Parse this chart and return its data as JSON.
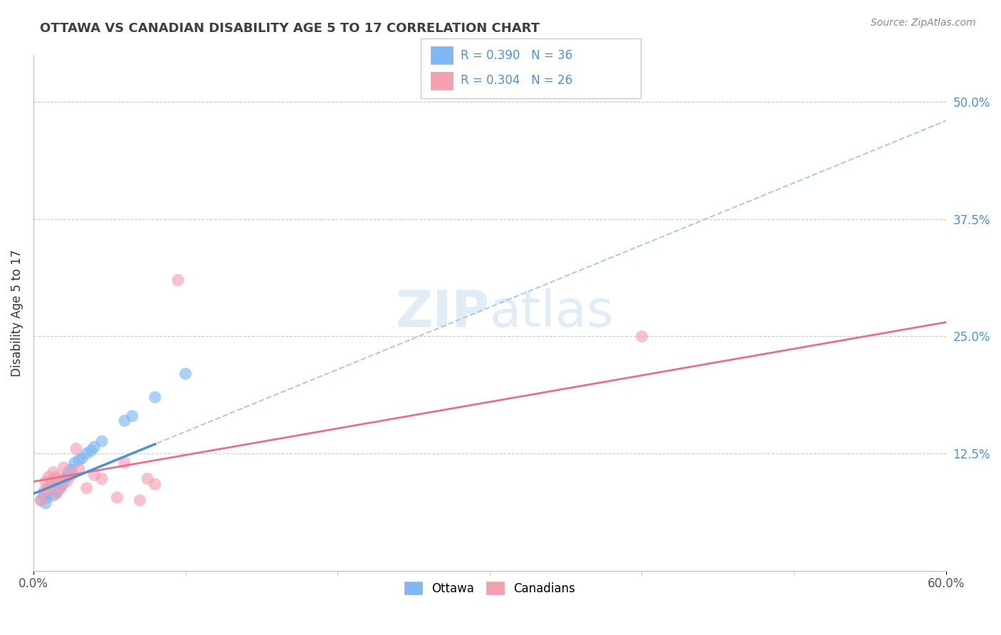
{
  "title": "OTTAWA VS CANADIAN DISABILITY AGE 5 TO 17 CORRELATION CHART",
  "source": "Source: ZipAtlas.com",
  "ylabel": "Disability Age 5 to 17",
  "xlim": [
    0.0,
    0.6
  ],
  "ylim": [
    0.0,
    0.55
  ],
  "xtick_positions": [
    0.0,
    0.6
  ],
  "xticklabels": [
    "0.0%",
    "60.0%"
  ],
  "yticks_right": [
    0.125,
    0.25,
    0.375,
    0.5
  ],
  "ytick_right_labels": [
    "12.5%",
    "25.0%",
    "37.5%",
    "50.0%"
  ],
  "legend_r1": "R = 0.390",
  "legend_n1": "N = 36",
  "legend_r2": "R = 0.304",
  "legend_n2": "N = 26",
  "blue_color": "#7EB8F7",
  "pink_color": "#F5A0B0",
  "blue_line_color": "#5090D0",
  "pink_line_color": "#E8708A",
  "blue_trend_color": "#AACCEE",
  "title_color": "#404040",
  "source_color": "#888888",
  "axis_color": "#bbbbbb",
  "grid_color": "#cccccc",
  "ottawa_points_x": [
    0.005,
    0.007,
    0.008,
    0.009,
    0.01,
    0.01,
    0.011,
    0.012,
    0.013,
    0.013,
    0.014,
    0.015,
    0.015,
    0.016,
    0.016,
    0.017,
    0.018,
    0.018,
    0.019,
    0.02,
    0.021,
    0.022,
    0.023,
    0.025,
    0.027,
    0.03,
    0.032,
    0.035,
    0.038,
    0.04,
    0.045,
    0.06,
    0.08,
    0.1,
    0.008,
    0.065
  ],
  "ottawa_points_y": [
    0.075,
    0.08,
    0.082,
    0.078,
    0.083,
    0.088,
    0.085,
    0.09,
    0.08,
    0.085,
    0.088,
    0.083,
    0.09,
    0.085,
    0.092,
    0.088,
    0.09,
    0.095,
    0.092,
    0.095,
    0.098,
    0.1,
    0.105,
    0.108,
    0.115,
    0.118,
    0.12,
    0.125,
    0.128,
    0.132,
    0.138,
    0.16,
    0.185,
    0.21,
    0.072,
    0.165
  ],
  "canadian_points_x": [
    0.005,
    0.007,
    0.008,
    0.009,
    0.01,
    0.012,
    0.013,
    0.015,
    0.015,
    0.016,
    0.018,
    0.02,
    0.022,
    0.025,
    0.028,
    0.03,
    0.035,
    0.04,
    0.045,
    0.055,
    0.06,
    0.07,
    0.075,
    0.08,
    0.4,
    0.095
  ],
  "canadian_points_y": [
    0.075,
    0.085,
    0.095,
    0.088,
    0.1,
    0.095,
    0.105,
    0.1,
    0.082,
    0.098,
    0.088,
    0.11,
    0.095,
    0.102,
    0.13,
    0.108,
    0.088,
    0.102,
    0.098,
    0.078,
    0.115,
    0.075,
    0.098,
    0.092,
    0.25,
    0.31
  ],
  "blue_trend_x": [
    0.0,
    0.6
  ],
  "blue_trend_y": [
    0.082,
    0.48
  ],
  "pink_trend_x": [
    0.0,
    0.6
  ],
  "pink_trend_y": [
    0.095,
    0.265
  ]
}
